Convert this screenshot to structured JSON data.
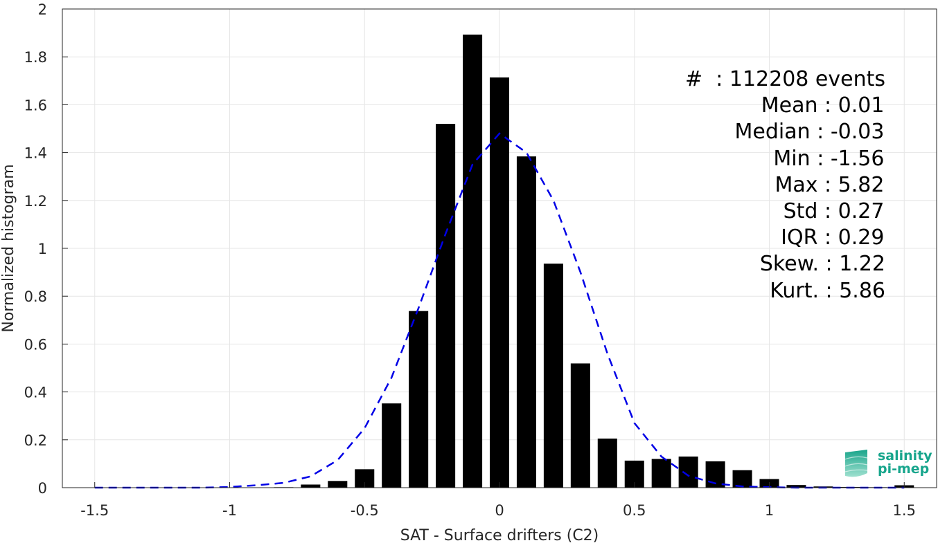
{
  "chart_data": {
    "type": "bar",
    "xlabel": "SAT - Surface drifters (C2)",
    "ylabel": "Normalized histogram",
    "xlim": [
      -1.62,
      1.62
    ],
    "ylim": [
      0,
      2
    ],
    "xticks": [
      "-1.5",
      "-1",
      "-0.5",
      "0",
      "0.5",
      "1",
      "1.5"
    ],
    "xtick_values": [
      -1.5,
      -1,
      -0.5,
      0,
      0.5,
      1,
      1.5
    ],
    "yticks": [
      "0",
      "0.2",
      "0.4",
      "0.6",
      "0.8",
      "1",
      "1.2",
      "1.4",
      "1.6",
      "1.8",
      "2"
    ],
    "ytick_values": [
      0,
      0.2,
      0.4,
      0.6,
      0.8,
      1,
      1.2,
      1.4,
      1.6,
      1.8,
      2
    ],
    "grid": true,
    "bar_color": "#000000",
    "fit_color": "#0000e6",
    "bins": [
      {
        "x": -0.8,
        "y": 0.002
      },
      {
        "x": -0.7,
        "y": 0.013
      },
      {
        "x": -0.6,
        "y": 0.028
      },
      {
        "x": -0.5,
        "y": 0.077
      },
      {
        "x": -0.4,
        "y": 0.352
      },
      {
        "x": -0.3,
        "y": 0.738
      },
      {
        "x": -0.2,
        "y": 1.52
      },
      {
        "x": -0.1,
        "y": 1.893
      },
      {
        "x": 0.0,
        "y": 1.714
      },
      {
        "x": 0.1,
        "y": 1.384
      },
      {
        "x": 0.2,
        "y": 0.936
      },
      {
        "x": 0.3,
        "y": 0.519
      },
      {
        "x": 0.4,
        "y": 0.205
      },
      {
        "x": 0.5,
        "y": 0.113
      },
      {
        "x": 0.6,
        "y": 0.12
      },
      {
        "x": 0.7,
        "y": 0.13
      },
      {
        "x": 0.8,
        "y": 0.11
      },
      {
        "x": 0.9,
        "y": 0.073
      },
      {
        "x": 1.0,
        "y": 0.036
      },
      {
        "x": 1.1,
        "y": 0.011
      },
      {
        "x": 1.2,
        "y": 0.005
      },
      {
        "x": 1.3,
        "y": 0.003
      },
      {
        "x": 1.4,
        "y": 0.002
      },
      {
        "x": 1.5,
        "y": 0.01
      }
    ],
    "bin_width": 0.1,
    "fit_curve": {
      "style": "dashed",
      "x": [
        -1.5,
        -1.4,
        -1.3,
        -1.2,
        -1.1,
        -1.0,
        -0.9,
        -0.8,
        -0.7,
        -0.6,
        -0.5,
        -0.4,
        -0.3,
        -0.2,
        -0.1,
        0.0,
        0.1,
        0.2,
        0.3,
        0.4,
        0.5,
        0.6,
        0.7,
        0.8,
        0.9,
        1.0,
        1.1,
        1.2,
        1.3,
        1.4,
        1.5
      ],
      "y": [
        0,
        0,
        0,
        0,
        0,
        0.003,
        0.01,
        0.02,
        0.047,
        0.115,
        0.248,
        0.46,
        0.75,
        1.06,
        1.35,
        1.48,
        1.4,
        1.2,
        0.9,
        0.56,
        0.27,
        0.13,
        0.05,
        0.018,
        0.005,
        0.002,
        0,
        0,
        0,
        0,
        0
      ]
    }
  },
  "stats": [
    "#  : 112208 events",
    "Mean : 0.01 ",
    "Median : -0.03 ",
    "Min : -1.56 ",
    "Max : 5.82 ",
    "Std : 0.27 ",
    "IQR : 0.29 ",
    "Skew. : 1.22",
    "Kurt. : 5.86"
  ],
  "logo": {
    "line1": "salinity",
    "line2": "pi-mep",
    "color": "#17a58c"
  }
}
